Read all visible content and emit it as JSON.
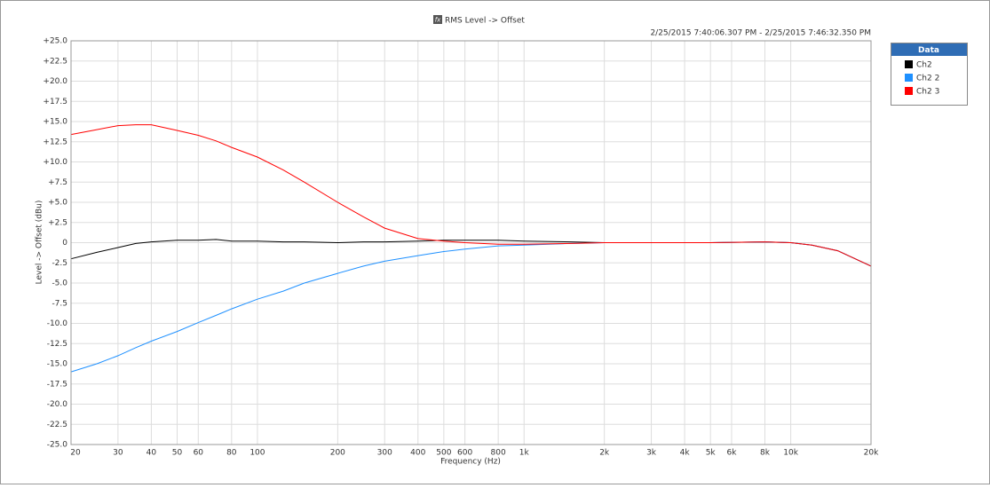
{
  "chart_data": {
    "type": "line",
    "icon_label": "fx",
    "title": "RMS Level -> Offset",
    "subtitle": "2/25/2015 7:40:06.307 PM - 2/25/2015 7:46:32.350 PM",
    "logo": "AP",
    "x_label": "Frequency (Hz)",
    "y_label": "Level -> Offset (dBu)",
    "log_x": true,
    "grid": true,
    "legend_title": "Data",
    "legend_position": "right",
    "xlim": [
      20,
      20000
    ],
    "ylim": [
      -25,
      25
    ],
    "xticks": [
      20,
      30,
      40,
      50,
      60,
      80,
      100,
      200,
      300,
      400,
      500,
      600,
      800,
      {
        "value": 1000,
        "label": "1k"
      },
      {
        "value": 2000,
        "label": "2k"
      },
      {
        "value": 3000,
        "label": "3k"
      },
      {
        "value": 4000,
        "label": "4k"
      },
      {
        "value": 5000,
        "label": "5k"
      },
      {
        "value": 6000,
        "label": "6k"
      },
      {
        "value": 8000,
        "label": "8k"
      },
      {
        "value": 10000,
        "label": "10k"
      },
      {
        "value": 20000,
        "label": "20k"
      }
    ],
    "yticks": [
      {
        "value": 25,
        "label": "+25.0"
      },
      {
        "value": 22.5,
        "label": "+22.5"
      },
      {
        "value": 20,
        "label": "+20.0"
      },
      {
        "value": 17.5,
        "label": "+17.5"
      },
      {
        "value": 15,
        "label": "+15.0"
      },
      {
        "value": 12.5,
        "label": "+12.5"
      },
      {
        "value": 10,
        "label": "+10.0"
      },
      {
        "value": 7.5,
        "label": "+7.5"
      },
      {
        "value": 5,
        "label": "+5.0"
      },
      {
        "value": 2.5,
        "label": "+2.5"
      },
      0,
      -2.5,
      {
        "value": -5,
        "label": "-5.0"
      },
      -7.5,
      {
        "value": -10,
        "label": "-10.0"
      },
      -12.5,
      {
        "value": -15,
        "label": "-15.0"
      },
      -17.5,
      {
        "value": -20,
        "label": "-20.0"
      },
      -22.5,
      {
        "value": -25,
        "label": "-25.0"
      }
    ],
    "x": [
      20,
      25,
      30,
      35,
      40,
      50,
      60,
      70,
      80,
      100,
      125,
      150,
      200,
      250,
      300,
      400,
      500,
      600,
      800,
      1000,
      1500,
      2000,
      3000,
      5000,
      8000,
      10000,
      12000,
      15000,
      20000
    ],
    "series": [
      {
        "name": "Ch2",
        "color": "#000000",
        "values": [
          -2.0,
          -1.2,
          -0.6,
          -0.1,
          0.1,
          0.3,
          0.3,
          0.4,
          0.2,
          0.2,
          0.1,
          0.1,
          0,
          0.1,
          0.1,
          0.2,
          0.3,
          0.3,
          0.3,
          0.2,
          0.1,
          0,
          0,
          0,
          0.1,
          0,
          -0.3,
          -1.0,
          -2.9
        ]
      },
      {
        "name": "Ch2 2",
        "color": "#1e90ff",
        "values": [
          -16.0,
          -15.0,
          -14.0,
          -13.0,
          -12.2,
          -11.0,
          -9.9,
          -9.0,
          -8.2,
          -7.0,
          -6.0,
          -5.0,
          -3.8,
          -2.9,
          -2.3,
          -1.6,
          -1.1,
          -0.8,
          -0.4,
          -0.3,
          -0.1,
          0,
          0,
          0,
          0.1,
          0,
          -0.3,
          -1.0,
          -2.9
        ]
      },
      {
        "name": "Ch2 3",
        "color": "#ff0000",
        "values": [
          13.4,
          14.0,
          14.5,
          14.6,
          14.6,
          13.9,
          13.3,
          12.6,
          11.8,
          10.6,
          9.0,
          7.5,
          5.0,
          3.2,
          1.8,
          0.5,
          0.2,
          0,
          -0.2,
          -0.2,
          -0.1,
          0,
          0,
          0,
          0.1,
          0,
          -0.3,
          -1.0,
          -2.9
        ]
      }
    ]
  }
}
